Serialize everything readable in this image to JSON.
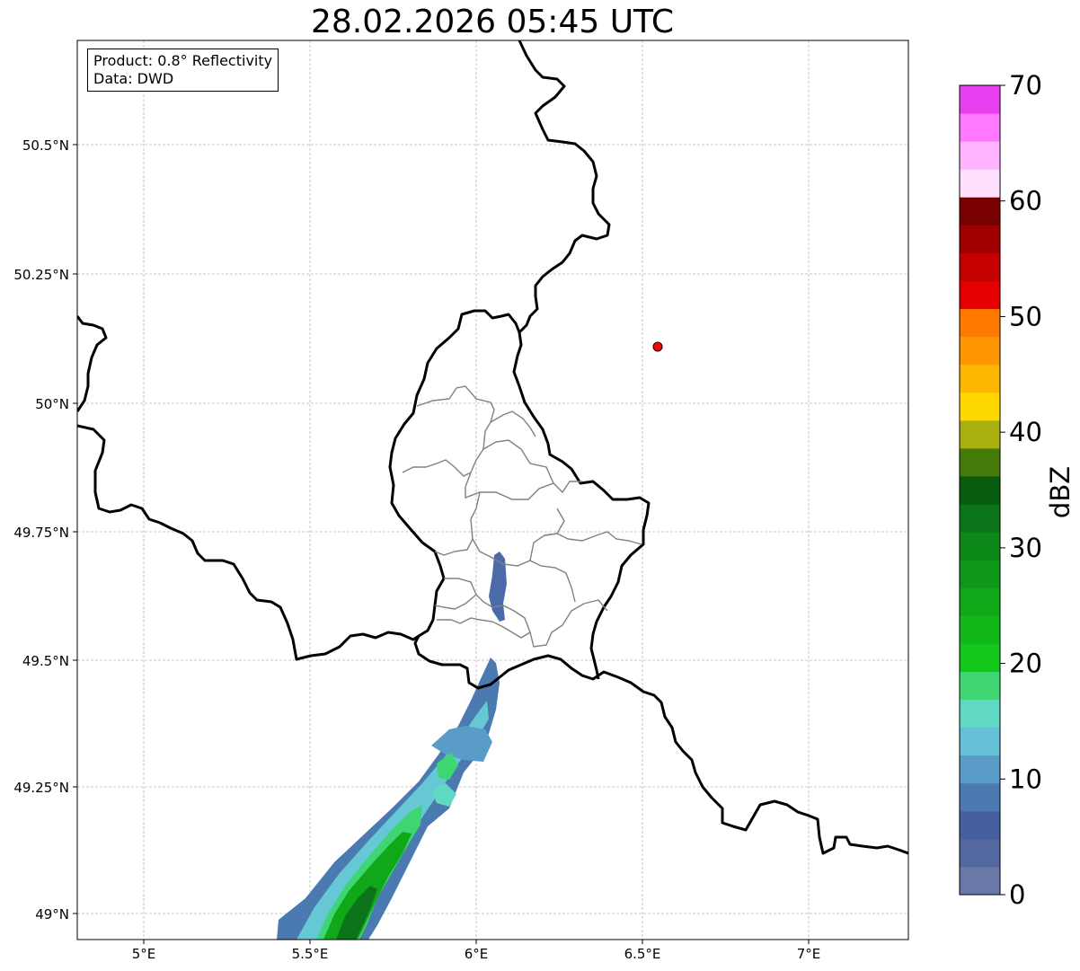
{
  "map": {
    "title": "28.02.2026 05:45 UTC",
    "product_label": "Product: 0.8° Reflectivity",
    "data_label": "Data: DWD",
    "lat_ticks": [
      "50.5°N",
      "50.25°N",
      "50°N",
      "49.75°N",
      "49.5°N",
      "49.25°N",
      "49°N"
    ],
    "lon_ticks": [
      "5°E",
      "5.5°E",
      "6°E",
      "6.5°E",
      "7°E"
    ],
    "extent": {
      "lon_min": 4.8,
      "lon_max": 7.3,
      "lat_min": 48.95,
      "lat_max": 50.7
    },
    "grid": true,
    "marker": {
      "lon": 6.55,
      "lat": 50.11,
      "color": "#ff0000"
    }
  },
  "colorbar": {
    "label": "dBZ",
    "ticks": [
      "0",
      "10",
      "20",
      "30",
      "40",
      "50",
      "60",
      "70"
    ],
    "colors": [
      "#6a7aa8",
      "#5468a0",
      "#44609f",
      "#4a7ab0",
      "#5a9cc8",
      "#66c0d8",
      "#60d8c4",
      "#3dd672",
      "#12c818",
      "#12b818",
      "#10a818",
      "#0e9818",
      "#0c8818",
      "#0c7418",
      "#085c10",
      "#467a08",
      "#aab010",
      "#ffd800",
      "#ffb800",
      "#ff9800",
      "#ff7800",
      "#e40000",
      "#c40000",
      "#a00000",
      "#780000",
      "#ffe0ff",
      "#ffb4ff",
      "#ff78ff",
      "#e840f0"
    ]
  }
}
